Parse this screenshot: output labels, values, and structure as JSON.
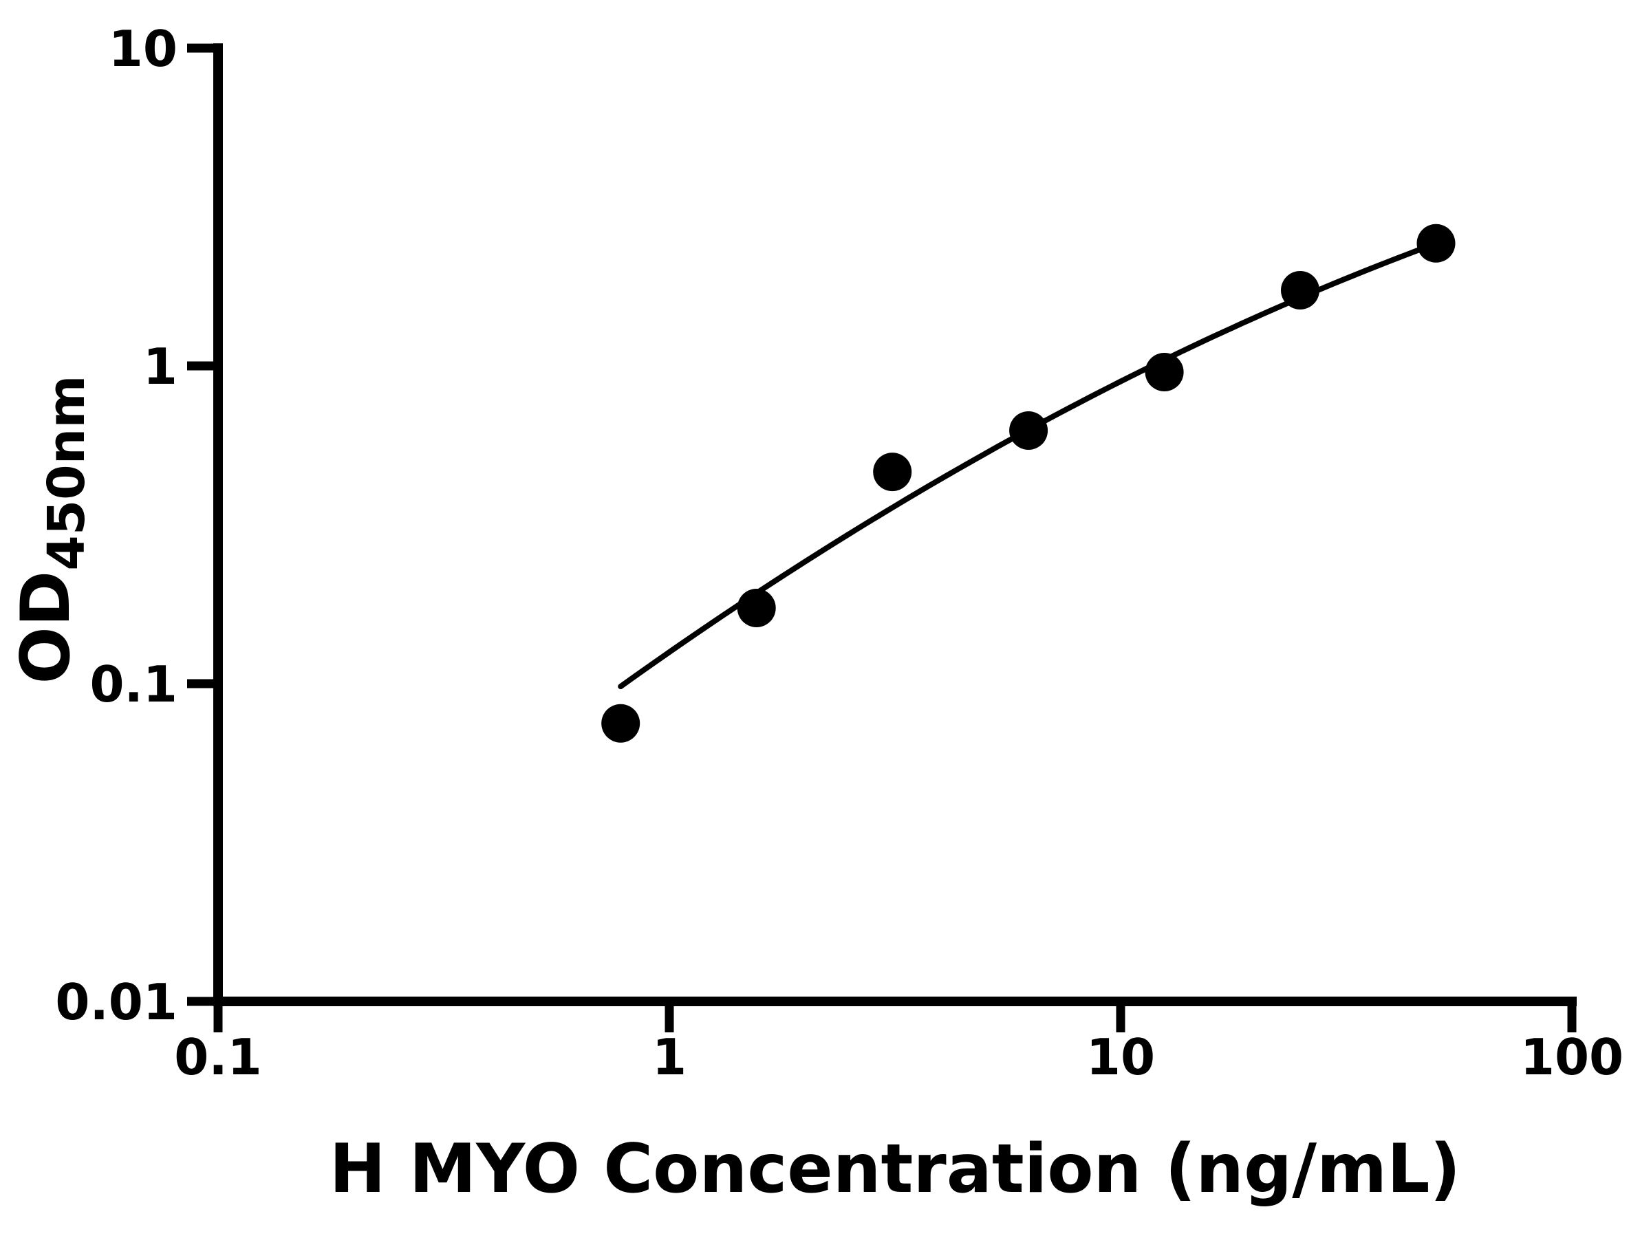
{
  "figure": {
    "background_color": "#ffffff",
    "foreground_color": "#000000"
  },
  "chart_data": {
    "type": "scatter",
    "title": "",
    "xlabel": "H MYO Concentration (ng/mL)",
    "ylabel_main": "OD",
    "ylabel_sub": "450nm",
    "x_scale": "log",
    "y_scale": "log",
    "xlim": [
      0.1,
      100
    ],
    "ylim": [
      0.01,
      10
    ],
    "x_ticks": [
      {
        "value": 0.1,
        "label": "0.1"
      },
      {
        "value": 1,
        "label": "1"
      },
      {
        "value": 10,
        "label": "10"
      },
      {
        "value": 100,
        "label": "100"
      }
    ],
    "y_ticks": [
      {
        "value": 0.01,
        "label": "0.01"
      },
      {
        "value": 0.1,
        "label": "0.1"
      },
      {
        "value": 1,
        "label": "1"
      },
      {
        "value": 10,
        "label": "10"
      }
    ],
    "grid": false,
    "legend": "none",
    "axis_color": "#000000",
    "series": [
      {
        "name": "standard-curve-points",
        "marker": "circle",
        "color": "#000000",
        "points": [
          {
            "x": 0.78,
            "y": 0.075
          },
          {
            "x": 1.56,
            "y": 0.173
          },
          {
            "x": 3.12,
            "y": 0.464
          },
          {
            "x": 6.25,
            "y": 0.626
          },
          {
            "x": 12.5,
            "y": 0.956
          },
          {
            "x": 25,
            "y": 1.73
          },
          {
            "x": 50,
            "y": 2.43
          }
        ]
      }
    ],
    "trend_curve": {
      "description": "smooth fitted curve through points, quadratic in log10-log10 space: logY = a*logX^2 + b*logX + c",
      "a": -0.1356,
      "b": 0.9873,
      "c": -0.9007,
      "x_range": [
        0.78,
        50
      ],
      "color": "#000000"
    }
  }
}
